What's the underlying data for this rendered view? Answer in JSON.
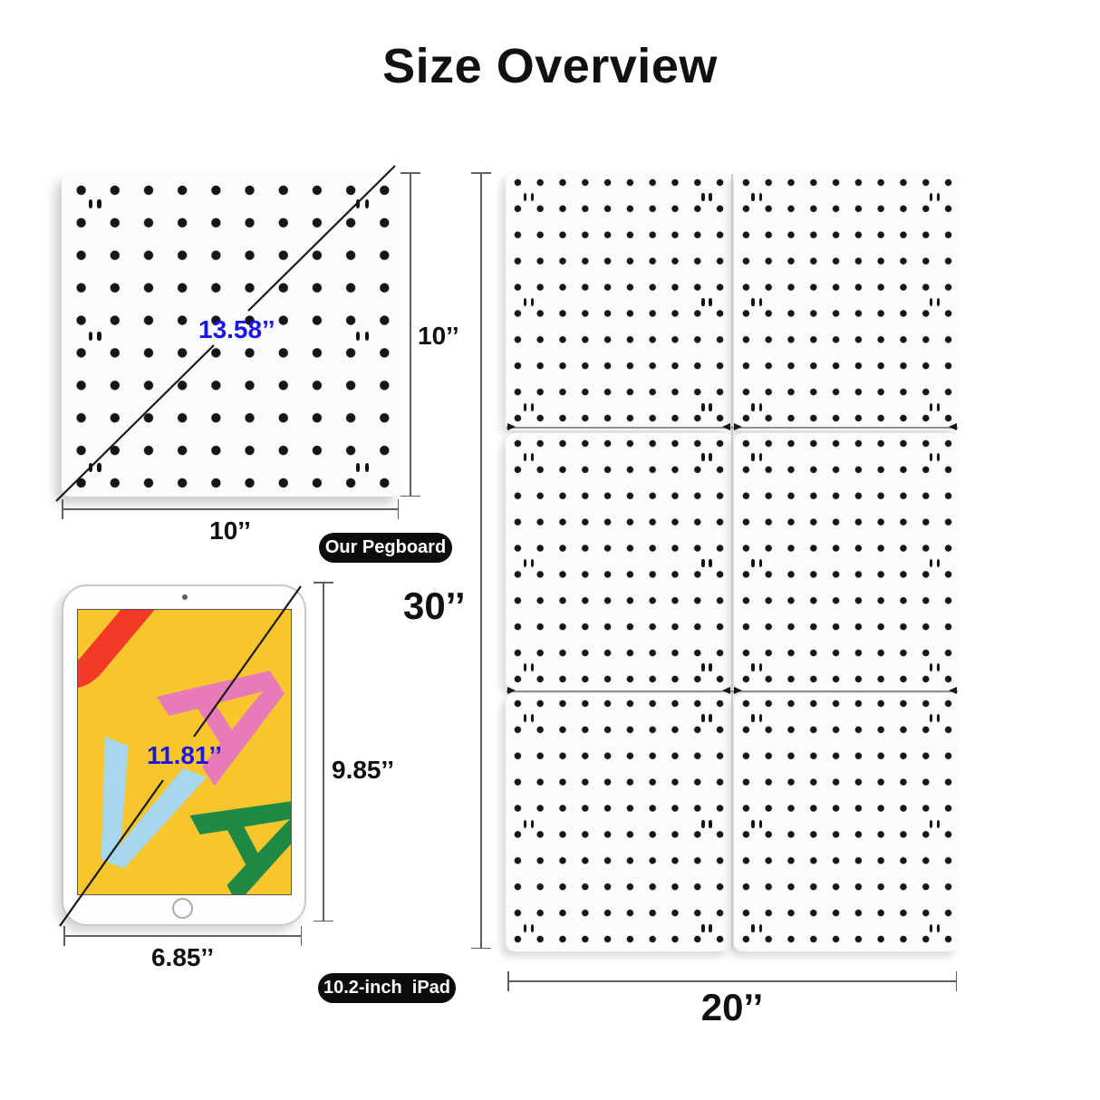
{
  "title": "Size Overview",
  "colors": {
    "diagonal_text_blue": "#1A16E8",
    "dimension_text": "#111111",
    "badge_background": "#0C0C0C",
    "badge_text": "#FFFFFF",
    "board_surface": "#FBFBFB",
    "peg_dot": "#161616",
    "ipad_screen_yellow": "#F7C52E"
  },
  "single_pegboard": {
    "badge_label": "Our Pegboard",
    "diagonal_label": "13.58’’",
    "height_label": "10’’",
    "width_label": "10’’",
    "holes_per_row": 10,
    "holes_per_column": 10
  },
  "ipad": {
    "badge_label": "10.2-inch  iPad",
    "diagonal_label": "11.81’’",
    "height_label": "9.85’’",
    "width_label": "6.85’’",
    "letters": [
      {
        "char": "J",
        "color": "#F23B26"
      },
      {
        "char": "A",
        "color": "#E77BB8"
      },
      {
        "char": "V",
        "color": "#A7D7ED"
      },
      {
        "char": "A",
        "color": "#1F8A43"
      }
    ]
  },
  "combined_pegboard": {
    "height_label": "30’’",
    "width_label": "20’’",
    "panel_grid": {
      "columns": 2,
      "rows": 3
    },
    "holes_per_row": 10,
    "holes_per_column": 10
  }
}
